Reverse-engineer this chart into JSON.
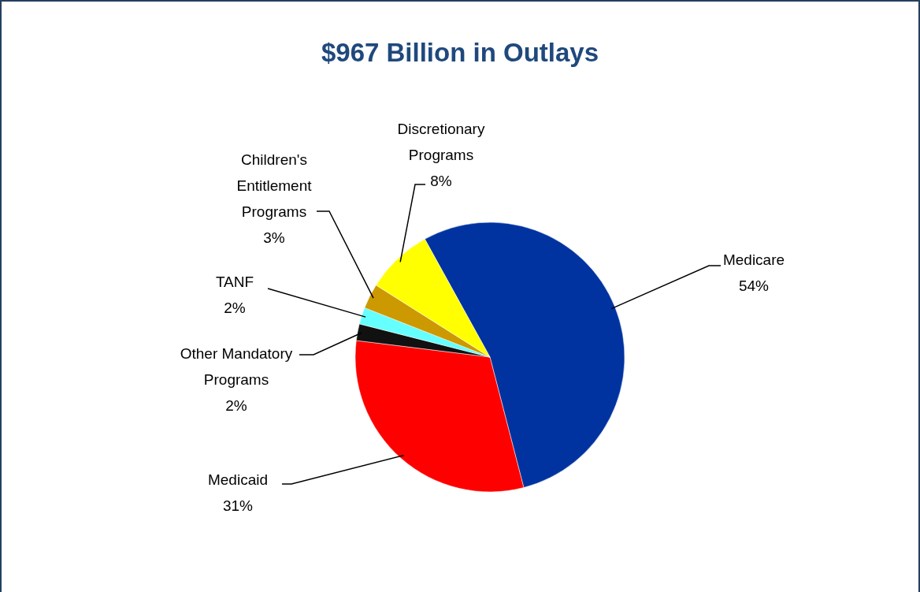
{
  "chart_data": {
    "type": "pie",
    "title": "$967 Billion in Outlays",
    "categories": [
      "Medicare",
      "Medicaid",
      "Other Mandatory Programs",
      "TANF",
      "Children's Entitlement Programs",
      "Discretionary Programs"
    ],
    "values": [
      54,
      31,
      2,
      2,
      3,
      8
    ],
    "colors": [
      "#0033a0",
      "#ff0000",
      "#111111",
      "#66ffff",
      "#cc9900",
      "#ffff00"
    ],
    "value_labels": [
      "54%",
      "31%",
      "2%",
      "2%",
      "3%",
      "8%"
    ],
    "legend": false
  }
}
